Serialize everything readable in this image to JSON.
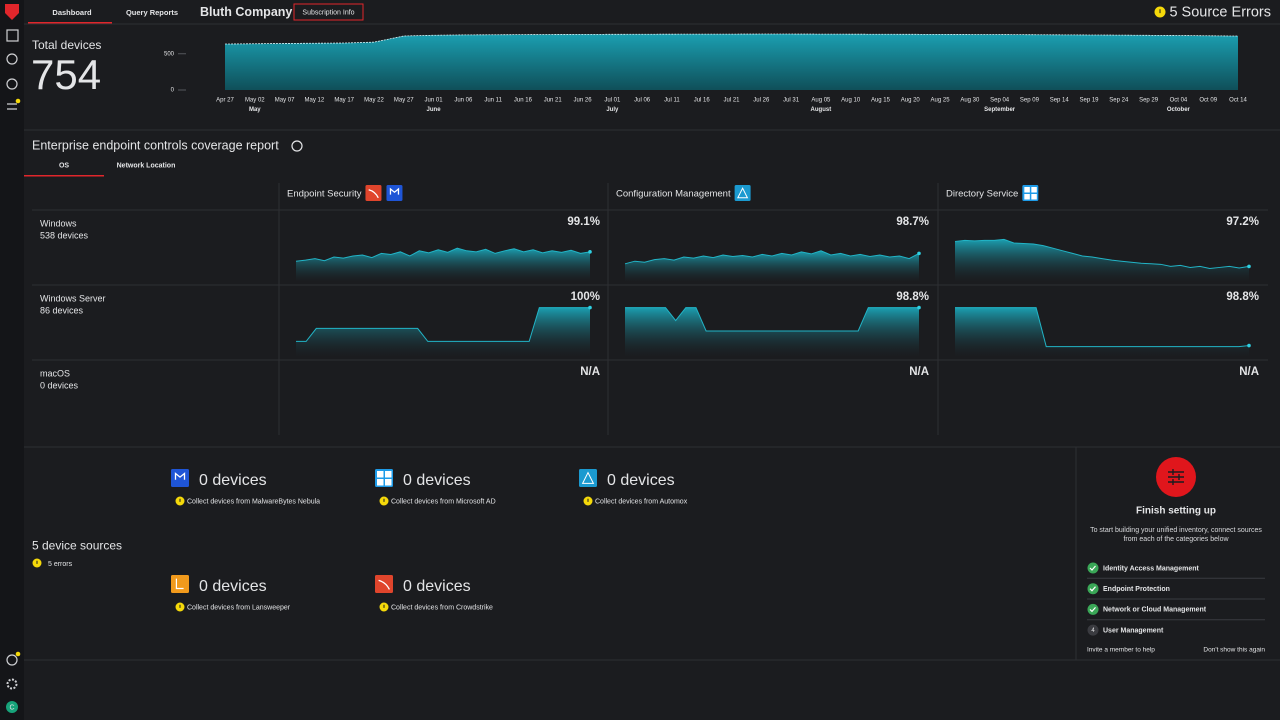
{
  "nav": {
    "tabs": [
      "Dashboard",
      "Query Reports"
    ],
    "company": "Bluth Company",
    "subscription": "Subscription Info",
    "errors": "5 Source Errors",
    "user_initial": "C"
  },
  "total_devices": {
    "title": "Total devices",
    "count": "754"
  },
  "chart_data": {
    "type": "area",
    "categories": [
      "Apr 27",
      "May 02",
      "May 07",
      "May 12",
      "May 17",
      "May 22",
      "May 27",
      "Jun 01",
      "Jun 06",
      "Jun 11",
      "Jun 16",
      "Jun 21",
      "Jun 26",
      "Jul 01",
      "Jul 06",
      "Jul 11",
      "Jul 16",
      "Jul 21",
      "Jul 26",
      "Jul 31",
      "Aug 05",
      "Aug 10",
      "Aug 15",
      "Aug 20",
      "Aug 25",
      "Aug 30",
      "Sep 04",
      "Sep 09",
      "Sep 14",
      "Sep 19",
      "Sep 24",
      "Sep 29",
      "Oct 04",
      "Oct 09",
      "Oct 14"
    ],
    "months": [
      "May",
      "June",
      "July",
      "August",
      "September",
      "October"
    ],
    "values": [
      634,
      638,
      642,
      645,
      648,
      660,
      745,
      755,
      760,
      762,
      764,
      766,
      767,
      768,
      769,
      770,
      771,
      771,
      772,
      772,
      771,
      770,
      769,
      768,
      767,
      766,
      765,
      763,
      761,
      759,
      757,
      754,
      752,
      748,
      744
    ],
    "ylim": [
      0,
      800
    ],
    "yticks": [
      0,
      500
    ],
    "color": "#1a9fb0"
  },
  "coverage": {
    "title": "Enterprise endpoint controls coverage report",
    "tabs": [
      "OS",
      "Network Location"
    ],
    "columns": [
      {
        "name": "Endpoint Security",
        "icons": [
          "crowdstrike",
          "malwarebytes"
        ]
      },
      {
        "name": "Configuration Management",
        "icons": [
          "automox"
        ]
      },
      {
        "name": "Directory Service",
        "icons": [
          "microsoft"
        ]
      }
    ],
    "ylim": [
      0,
      100
    ],
    "rows": [
      {
        "name": "Windows",
        "devices": "538 devices",
        "cells": [
          {
            "label": "99.1%",
            "values": [
              40,
              42,
              45,
              41,
              48,
              46,
              50,
              52,
              47,
              55,
              53,
              58,
              50,
              60,
              56,
              62,
              57,
              65,
              60,
              58,
              63,
              55,
              60,
              64,
              58,
              62,
              56,
              60,
              57,
              61,
              55,
              58
            ]
          },
          {
            "label": "98.7%",
            "values": [
              35,
              40,
              38,
              43,
              45,
              42,
              48,
              46,
              50,
              47,
              52,
              49,
              51,
              48,
              53,
              50,
              55,
              52,
              58,
              54,
              60,
              52,
              55,
              50,
              53,
              49,
              52,
              48,
              50,
              45,
              55
            ]
          },
          {
            "label": "97.2%",
            "values": [
              78,
              80,
              79,
              80,
              80,
              82,
              75,
              74,
              73,
              70,
              65,
              60,
              55,
              50,
              48,
              45,
              42,
              40,
              38,
              36,
              35,
              34,
              30,
              32,
              28,
              30,
              26,
              28,
              30,
              27,
              30
            ]
          }
        ]
      },
      {
        "name": "Windows Server",
        "devices": "86 devices",
        "cells": [
          {
            "label": "100%",
            "values": [
              30,
              30,
              55,
              55,
              55,
              55,
              55,
              55,
              55,
              55,
              55,
              55,
              55,
              30,
              30,
              30,
              30,
              30,
              30,
              30,
              30,
              30,
              30,
              30,
              95,
              95,
              95,
              95,
              95,
              95
            ]
          },
          {
            "label": "98.8%",
            "values": [
              95,
              95,
              95,
              95,
              95,
              70,
              95,
              95,
              50,
              50,
              50,
              50,
              50,
              50,
              50,
              50,
              50,
              50,
              50,
              50,
              50,
              50,
              50,
              50,
              95,
              95,
              95,
              95,
              95,
              95
            ]
          },
          {
            "label": "98.8%",
            "values": [
              95,
              95,
              95,
              95,
              95,
              95,
              95,
              95,
              95,
              20,
              20,
              20,
              20,
              20,
              20,
              20,
              20,
              20,
              20,
              20,
              20,
              20,
              20,
              20,
              20,
              20,
              20,
              20,
              20,
              22
            ]
          }
        ]
      },
      {
        "name": "macOS",
        "devices": "0 devices",
        "cells": [
          {
            "label": "N/A"
          },
          {
            "label": "N/A"
          },
          {
            "label": "N/A"
          }
        ]
      }
    ]
  },
  "sources": {
    "title": "5 device sources",
    "errors": "5 errors",
    "items": [
      {
        "count": "0 devices",
        "note": "Collect devices from MalwareBytes Nebula",
        "icon": "malwarebytes"
      },
      {
        "count": "0 devices",
        "note": "Collect devices from Microsoft AD",
        "icon": "microsoft"
      },
      {
        "count": "0 devices",
        "note": "Collect devices from Automox",
        "icon": "automox"
      },
      {
        "count": "0 devices",
        "note": "Collect devices from Lansweeper",
        "icon": "lansweeper"
      },
      {
        "count": "0 devices",
        "note": "Collect devices from Crowdstrike",
        "icon": "crowdstrike"
      }
    ]
  },
  "setup": {
    "title": "Finish setting up",
    "text": "To start building your unified inventory, connect sources from each of the categories below",
    "steps": [
      {
        "label": "Identity Access Management",
        "done": true
      },
      {
        "label": "Endpoint Protection",
        "done": true
      },
      {
        "label": "Network or Cloud Management",
        "done": true
      },
      {
        "label": "User Management",
        "done": false,
        "number": "4"
      }
    ],
    "invite": "Invite a member to help",
    "dismiss": "Don't show this again"
  }
}
